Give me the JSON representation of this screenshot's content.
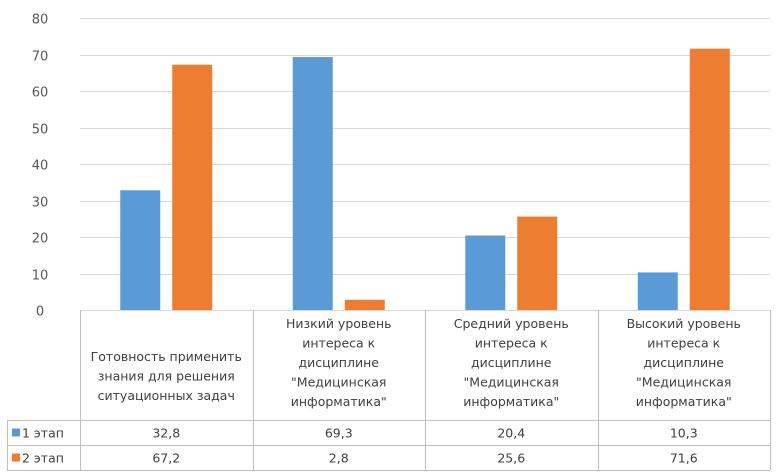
{
  "chart_data": {
    "type": "bar",
    "categories": [
      [
        "Готовность применить",
        "знания для решения",
        "ситуационных задач"
      ],
      [
        "Низкий уровень",
        "интереса к",
        "дисциплине",
        "\"Медицинская",
        "информатика\""
      ],
      [
        "Средний уровень",
        "интереса к",
        "дисциплине",
        "\"Медицинская",
        "информатика\""
      ],
      [
        "Высокий уровень",
        "интереса к",
        "дисциплине",
        "\"Медицинская",
        "информатика\""
      ]
    ],
    "series": [
      {
        "name": "1 этап",
        "color": "#5b9bd5",
        "values": [
          32.8,
          69.3,
          20.4,
          10.3
        ],
        "labels": [
          "32,8",
          "69,3",
          "20,4",
          "10,3"
        ]
      },
      {
        "name": "2 этап",
        "color": "#ed7d31",
        "values": [
          67.2,
          2.8,
          25.6,
          71.6
        ],
        "labels": [
          "67,2",
          "2,8",
          "25,6",
          "71,6"
        ]
      }
    ],
    "ylim": [
      0,
      80
    ],
    "yticks": [
      0,
      10,
      20,
      30,
      40,
      50,
      60,
      70,
      80
    ],
    "grid": true,
    "legend": "data-table"
  }
}
